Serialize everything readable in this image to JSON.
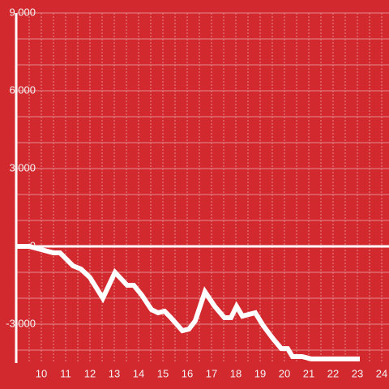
{
  "chart_data": {
    "type": "line",
    "x": [
      9,
      9.5,
      10,
      10.5,
      10.77,
      11.3,
      11.63,
      12,
      12.53,
      13.03,
      13.53,
      13.8,
      14.13,
      14.53,
      14.8,
      15.07,
      15.33,
      15.8,
      16.07,
      16.33,
      16.73,
      17.13,
      17.53,
      17.8,
      18.03,
      18.27,
      18.53,
      18.8,
      19.13,
      19.53,
      19.87,
      20.13,
      20.33,
      20.73,
      21.1,
      23.1
    ],
    "series": [
      {
        "color": "#ffffff",
        "values": [
          0,
          0,
          -125,
          -250,
          -250,
          -750,
          -875,
          -1200,
          -2000,
          -1000,
          -1500,
          -1500,
          -1875,
          -2440,
          -2560,
          -2500,
          -2750,
          -3250,
          -3190,
          -2875,
          -1750,
          -2310,
          -2750,
          -2750,
          -2310,
          -2690,
          -2625,
          -2560,
          -3060,
          -3560,
          -3940,
          -3940,
          -4250,
          -4250,
          -4340,
          -4340
        ]
      }
    ],
    "xlim": [
      9,
      24.3
    ],
    "xticks": [
      10,
      11,
      12,
      13,
      14,
      15,
      16,
      17,
      18,
      19,
      20,
      21,
      22,
      23,
      24
    ],
    "xminorticks": [
      9.5,
      10.5,
      11.5,
      12.5,
      13.5,
      14.5,
      15.5,
      16.5,
      17.5,
      18.5,
      19.5,
      20.5,
      21.5,
      22.5,
      23.5
    ],
    "ylim": [
      -4500,
      9000
    ],
    "yticks": [
      {
        "value": -3000,
        "label": "-3,000"
      },
      0,
      {
        "value": 3000,
        "label": "3,000"
      },
      {
        "value": 6000,
        "label": "6,000"
      },
      {
        "value": 9000,
        "label": "9,000"
      }
    ],
    "yminorticks": [
      -4000,
      -2000,
      -1000,
      1000,
      2000,
      4000,
      5000,
      7000,
      8000
    ],
    "grid": true
  }
}
